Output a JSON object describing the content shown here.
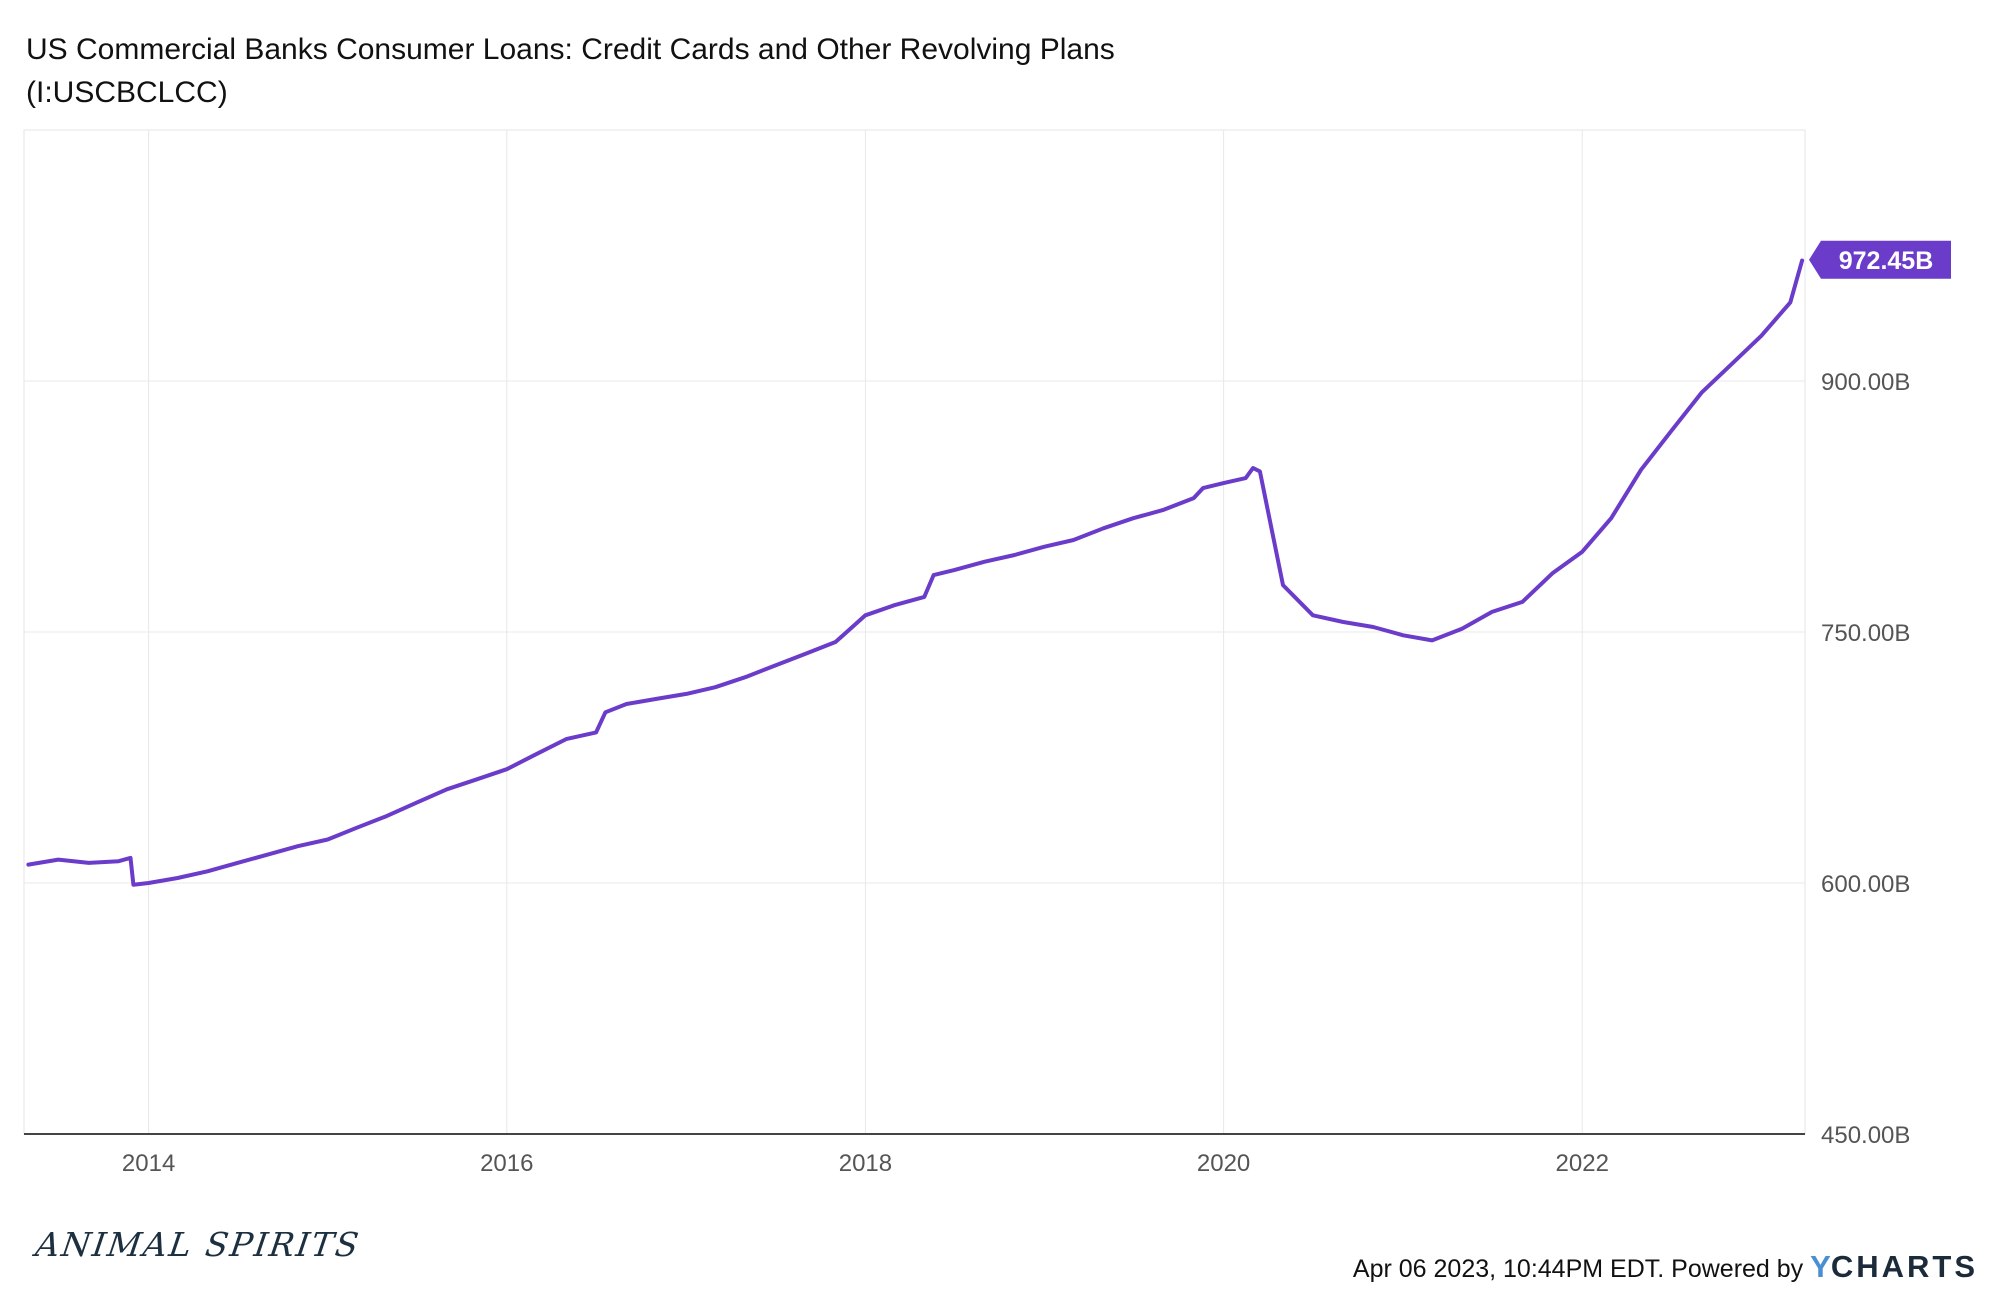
{
  "chart_data": {
    "type": "line",
    "title": "US Commercial Banks Consumer Loans: Credit Cards and Other Revolving Plans",
    "subtitle": "(I:USCBCLCC)",
    "x_ticks": [
      "2014",
      "2016",
      "2018",
      "2020",
      "2022"
    ],
    "y_ticks": [
      "450.00B",
      "600.00B",
      "750.00B",
      "900.00B"
    ],
    "ylim": [
      450,
      1050
    ],
    "y_unit": "B",
    "grid": true,
    "last_value_label": "972.45B",
    "line_color": "#6a3cc9",
    "series": [
      {
        "x": [
          "2013-05-01",
          "2013-07-01",
          "2013-09-01",
          "2013-11-01",
          "2013-11-25",
          "2013-12-01",
          "2014-01-01",
          "2014-03-01",
          "2014-05-01",
          "2014-07-01",
          "2014-09-01",
          "2014-11-01",
          "2015-01-01",
          "2015-03-01",
          "2015-05-01",
          "2015-07-01",
          "2015-09-01",
          "2015-11-01",
          "2016-01-01",
          "2016-03-01",
          "2016-05-01",
          "2016-07-01",
          "2016-07-20",
          "2016-09-01",
          "2016-11-01",
          "2017-01-01",
          "2017-03-01",
          "2017-05-01",
          "2017-07-01",
          "2017-09-01",
          "2017-11-01",
          "2017-11-20",
          "2018-01-01",
          "2018-03-01",
          "2018-05-01",
          "2018-05-20",
          "2018-07-01",
          "2018-09-01",
          "2018-11-01",
          "2019-01-01",
          "2019-03-01",
          "2019-05-01",
          "2019-07-01",
          "2019-09-01",
          "2019-11-01",
          "2019-11-20",
          "2020-01-01",
          "2020-02-15",
          "2020-03-01",
          "2020-03-15",
          "2020-05-01",
          "2020-07-01",
          "2020-09-01",
          "2020-11-01",
          "2021-01-01",
          "2021-03-01",
          "2021-05-01",
          "2021-07-01",
          "2021-09-01",
          "2021-11-01",
          "2022-01-01",
          "2022-03-01",
          "2022-05-01",
          "2022-07-01",
          "2022-09-01",
          "2022-11-01",
          "2023-01-01",
          "2023-03-01",
          "2023-03-25"
        ],
        "y": [
          611,
          614,
          612,
          613,
          615,
          599,
          600,
          603,
          607,
          612,
          617,
          622,
          626,
          633,
          640,
          648,
          656,
          662,
          668,
          677,
          686,
          690,
          702,
          707,
          710,
          713,
          717,
          723,
          730,
          737,
          744,
          749,
          760,
          766,
          771,
          784,
          787,
          792,
          796,
          801,
          805,
          812,
          818,
          823,
          830,
          836,
          839,
          842,
          848,
          846,
          778,
          760,
          756,
          753,
          748,
          745,
          752,
          762,
          768,
          785,
          798,
          818,
          847,
          870,
          893,
          910,
          927,
          947,
          972
        ]
      }
    ]
  },
  "footer": {
    "timestamp": "Apr 06 2023, 10:44PM EDT.",
    "powered_by": "Powered by",
    "brand_y": "Y",
    "brand_rest": "CHARTS",
    "logo_text": "ANIMAL SPIRITS"
  }
}
